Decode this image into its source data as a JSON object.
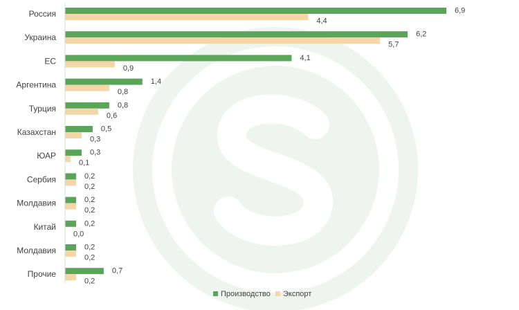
{
  "colors": {
    "production": "#5aa55a",
    "export": "#f5d6a8",
    "watermark": "#eef5ee",
    "axis": "#d9d9d9"
  },
  "chart_data": {
    "type": "bar",
    "orientation": "horizontal",
    "categories": [
      "Россия",
      "Украина",
      "ЕС",
      "Аргентина",
      "Турция",
      "Казахстан",
      "ЮАР",
      "Сербия",
      "Молдавия",
      "Китай",
      "Молдавия",
      "Прочие"
    ],
    "series": [
      {
        "name": "Производство",
        "values": [
          6.9,
          6.2,
          4.1,
          1.4,
          0.8,
          0.5,
          0.3,
          0.2,
          0.2,
          0.2,
          0.2,
          0.7
        ],
        "labels": [
          "6,9",
          "6,2",
          "4,1",
          "1,4",
          "0,8",
          "0,5",
          "0,3",
          "0,2",
          "0,2",
          "0,2",
          "0,2",
          "0,7"
        ]
      },
      {
        "name": "Экспорт",
        "values": [
          4.4,
          5.7,
          0.9,
          0.8,
          0.6,
          0.3,
          0.1,
          0.2,
          0.2,
          0.0,
          0.2,
          0.2
        ],
        "labels": [
          "4,4",
          "5,7",
          "0,9",
          "0,8",
          "0,6",
          "0,3",
          "0,1",
          "0,2",
          "0,2",
          "0,0",
          "0,2",
          "0,2"
        ]
      }
    ],
    "xlim": [
      0,
      7.5
    ],
    "grid": false,
    "legend_position": "bottom"
  }
}
